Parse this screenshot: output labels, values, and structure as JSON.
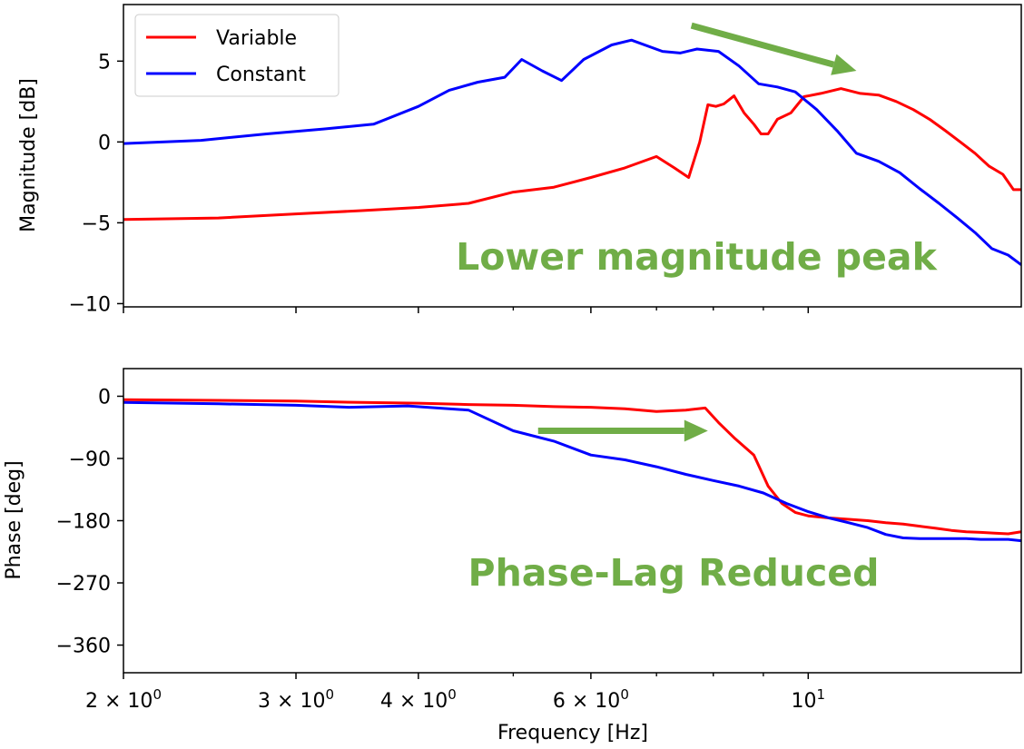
{
  "chart_data": [
    {
      "type": "line",
      "ylabel": "Magnitude [dB]",
      "xscale": "log",
      "xlim": [
        2.0,
        16.5
      ],
      "ylim": [
        -10.2,
        8.5
      ],
      "yticks": [
        -10,
        -5,
        0,
        5
      ],
      "ytick_labels": [
        "−10",
        "−5",
        "0",
        "5"
      ],
      "legend": {
        "placement": "top-left"
      },
      "annotation": "Lower magnitude peak",
      "arrow": {
        "from": [
          7.6,
          7.2
        ],
        "to": [
          11.2,
          4.4
        ]
      },
      "series": [
        {
          "name": "Variable",
          "color": "#ff0000",
          "x": [
            2.0,
            2.5,
            3.0,
            3.5,
            4.0,
            4.5,
            5.0,
            5.5,
            6.0,
            6.5,
            7.0,
            7.3,
            7.55,
            7.75,
            7.9,
            8.05,
            8.2,
            8.4,
            8.6,
            8.8,
            8.95,
            9.1,
            9.3,
            9.6,
            9.9,
            10.3,
            10.8,
            11.3,
            11.8,
            12.3,
            12.8,
            13.3,
            13.8,
            14.3,
            14.8,
            15.3,
            15.8,
            16.2,
            16.5
          ],
          "y": [
            -4.8,
            -4.7,
            -4.45,
            -4.25,
            -4.05,
            -3.8,
            -3.1,
            -2.8,
            -2.2,
            -1.6,
            -0.9,
            -1.6,
            -2.2,
            0.0,
            2.3,
            2.2,
            2.35,
            2.85,
            1.8,
            1.1,
            0.5,
            0.5,
            1.4,
            1.8,
            2.8,
            3.0,
            3.3,
            3.0,
            2.9,
            2.5,
            2.0,
            1.4,
            0.7,
            0.0,
            -0.7,
            -1.5,
            -2.0,
            -2.95,
            -2.95
          ]
        },
        {
          "name": "Constant",
          "color": "#0000ff",
          "x": [
            2.0,
            2.4,
            2.8,
            3.2,
            3.6,
            4.0,
            4.3,
            4.6,
            4.9,
            5.1,
            5.35,
            5.6,
            5.9,
            6.3,
            6.6,
            7.1,
            7.4,
            7.7,
            8.1,
            8.5,
            8.9,
            9.3,
            9.7,
            10.2,
            10.7,
            11.2,
            11.8,
            12.4,
            13.0,
            13.6,
            14.2,
            14.8,
            15.4,
            16.0,
            16.5
          ],
          "y": [
            -0.1,
            0.1,
            0.5,
            0.8,
            1.1,
            2.2,
            3.2,
            3.7,
            4.0,
            5.1,
            4.4,
            3.8,
            5.1,
            6.0,
            6.3,
            5.6,
            5.5,
            5.75,
            5.6,
            4.7,
            3.6,
            3.4,
            3.1,
            2.0,
            0.7,
            -0.7,
            -1.2,
            -1.9,
            -2.9,
            -3.8,
            -4.7,
            -5.6,
            -6.6,
            -7.0,
            -7.6
          ]
        }
      ]
    },
    {
      "type": "line",
      "xlabel": "Frequency [Hz]",
      "ylabel": "Phase [deg]",
      "xscale": "log",
      "xlim": [
        2.0,
        16.5
      ],
      "ylim": [
        -400,
        40
      ],
      "yticks": [
        0,
        -90,
        -180,
        -270,
        -360
      ],
      "ytick_labels": [
        "0",
        "−90",
        "−180",
        "−270",
        "−360"
      ],
      "xticks": [
        2,
        3,
        4,
        6,
        10
      ],
      "xtick_labels": [
        {
          "base": "2",
          "exp": "0"
        },
        {
          "base": "3",
          "exp": "0"
        },
        {
          "base": "4",
          "exp": "0"
        },
        {
          "base": "6",
          "exp": "0"
        },
        {
          "base": "10",
          "exp": "1"
        }
      ],
      "annotation": "Phase-Lag Reduced",
      "arrow": {
        "from": [
          5.3,
          -50
        ],
        "to": [
          7.9,
          -50
        ]
      },
      "series": [
        {
          "name": "Variable",
          "color": "#ff0000",
          "x": [
            2.0,
            2.5,
            3.0,
            3.5,
            4.0,
            4.5,
            5.0,
            5.5,
            6.0,
            6.5,
            7.0,
            7.5,
            7.85,
            8.1,
            8.4,
            8.8,
            9.1,
            9.4,
            9.7,
            10.0,
            10.5,
            11.0,
            11.5,
            12.0,
            12.5,
            13.0,
            13.5,
            14.0,
            14.5,
            15.0,
            15.5,
            16.0,
            16.5
          ],
          "y": [
            -5,
            -6,
            -7,
            -9,
            -10,
            -12,
            -13,
            -15,
            -16,
            -18,
            -22,
            -20,
            -17,
            -38,
            -60,
            -85,
            -130,
            -155,
            -168,
            -173,
            -176,
            -178,
            -180,
            -183,
            -185,
            -188,
            -191,
            -194,
            -196,
            -197,
            -198,
            -199,
            -196
          ]
        },
        {
          "name": "Constant",
          "color": "#0000ff",
          "x": [
            2.0,
            2.5,
            3.0,
            3.4,
            3.9,
            4.5,
            5.0,
            5.5,
            6.0,
            6.5,
            7.0,
            7.5,
            8.0,
            8.5,
            9.0,
            9.5,
            10.0,
            10.5,
            11.0,
            11.5,
            12.0,
            12.5,
            13.0,
            13.5,
            14.0,
            14.5,
            15.0,
            15.5,
            16.0,
            16.5
          ],
          "y": [
            -9,
            -11,
            -13,
            -16,
            -14,
            -20,
            -50,
            -65,
            -85,
            -92,
            -102,
            -113,
            -122,
            -130,
            -140,
            -155,
            -167,
            -176,
            -183,
            -190,
            -200,
            -205,
            -206,
            -206,
            -206,
            -206,
            -207,
            -207,
            -207,
            -209
          ]
        }
      ]
    }
  ]
}
